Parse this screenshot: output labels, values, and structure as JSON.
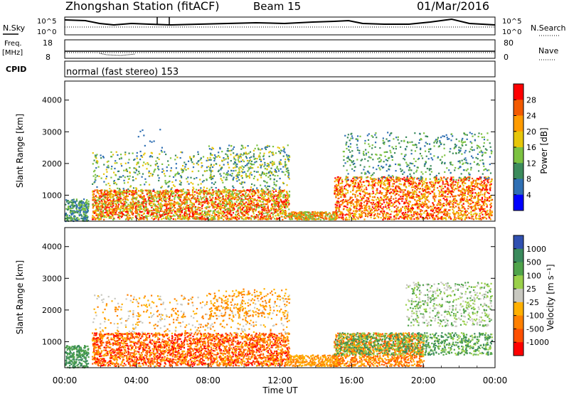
{
  "header": {
    "station": "Zhongshan Station (fitACF)",
    "beam": "Beam 15",
    "date": "01/Mar/2016"
  },
  "noise_panel": {
    "left_label": "N.Sky",
    "right_label": "N.Search",
    "top_tick_left": "10^5",
    "bottom_tick_left": "10^0",
    "top_tick_right": "10^5",
    "bottom_tick_right": "10^0"
  },
  "freq_panel": {
    "left_label": "Freq.",
    "left_unit": "[MHz]",
    "right_label": "Nave",
    "left_ticks": [
      "18",
      "8"
    ],
    "right_ticks": [
      "80",
      "0"
    ]
  },
  "cpid_panel": {
    "label": "CPID",
    "text": "normal (fast stereo) 153"
  },
  "chart_data": [
    {
      "type": "heatmap",
      "panel": "power",
      "ylabel": "Slant Range [km]",
      "ylim": [
        180,
        4600
      ],
      "yticks": [
        "1000",
        "2000",
        "3000",
        "4000"
      ],
      "xlim_hours": [
        0,
        24
      ],
      "colorbar_label": "Power [dB]",
      "colorbar_ticks": [
        "28",
        "24",
        "20",
        "16",
        "12",
        "8",
        "4"
      ],
      "colorbar_colors": [
        "#ff0000",
        "#f25a00",
        "#ff9b00",
        "#e6c60a",
        "#7cc241",
        "#3c8b5c",
        "#2f6fb3",
        "#0000ff"
      ]
    },
    {
      "type": "heatmap",
      "panel": "velocity",
      "ylabel": "Slant Range [km]",
      "ylim": [
        180,
        4600
      ],
      "yticks": [
        "1000",
        "2000",
        "3000",
        "4000"
      ],
      "xlim_hours": [
        0,
        24
      ],
      "colorbar_label": "Velocity [m s⁻¹]",
      "colorbar_ticks": [
        "1000",
        "500",
        "100",
        "25",
        "-25",
        "-100",
        "-500",
        "-1000"
      ],
      "colorbar_colors": [
        "#3050b0",
        "#3a8a5c",
        "#4fa34a",
        "#9ad04a",
        "#c8c8c0",
        "#ffb000",
        "#ff8000",
        "#ff5000",
        "#ff0000"
      ]
    }
  ],
  "time_axis": {
    "ticks": [
      "00:00",
      "04:00",
      "08:00",
      "12:00",
      "16:00",
      "20:00",
      "00:00"
    ],
    "label": "Time UT"
  }
}
